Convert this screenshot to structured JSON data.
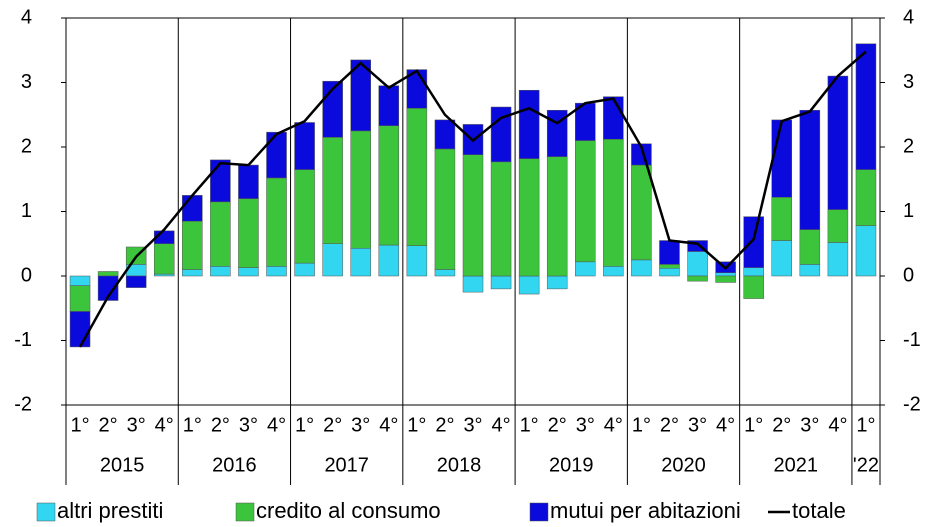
{
  "chart_data": {
    "type": "bar",
    "categories": [
      "1°",
      "2°",
      "3°",
      "4°",
      "1°",
      "2°",
      "3°",
      "4°",
      "1°",
      "2°",
      "3°",
      "4°",
      "1°",
      "2°",
      "3°",
      "4°",
      "1°",
      "2°",
      "3°",
      "4°",
      "1°",
      "2°",
      "3°",
      "4°",
      "1°",
      "2°",
      "3°",
      "4°",
      "1°"
    ],
    "years": [
      "2015",
      "2016",
      "2017",
      "2018",
      "2019",
      "2020",
      "2021",
      "'22"
    ],
    "series": [
      {
        "name": "altri prestiti",
        "color": "#33d6f0",
        "values": [
          -0.15,
          0,
          0.18,
          0.03,
          0.1,
          0.15,
          0.13,
          0.15,
          0.2,
          0.5,
          0.43,
          0.48,
          0.47,
          0.1,
          -0.25,
          -0.2,
          -0.28,
          -0.2,
          0.22,
          0.15,
          0.25,
          0.12,
          0.38,
          0.05,
          0.13,
          0.55,
          0.18,
          0.52,
          0.78
        ]
      },
      {
        "name": "credito al consumo",
        "color": "#3cc43c",
        "values": [
          -0.4,
          0.07,
          0.27,
          0.47,
          0.75,
          1.0,
          1.07,
          1.37,
          1.45,
          1.65,
          1.82,
          1.85,
          2.13,
          1.87,
          1.88,
          1.77,
          1.82,
          1.85,
          1.88,
          1.97,
          1.47,
          0.06,
          -0.08,
          -0.1,
          -0.35,
          0.67,
          0.54,
          0.51,
          0.87
        ]
      },
      {
        "name": "mutui per abitazioni",
        "color": "#0a0adc",
        "values": [
          -0.55,
          -0.38,
          -0.18,
          0.2,
          0.4,
          0.65,
          0.52,
          0.71,
          0.73,
          0.87,
          1.1,
          0.62,
          0.6,
          0.45,
          0.47,
          0.85,
          1.06,
          0.72,
          0.58,
          0.66,
          0.33,
          0.37,
          0.17,
          0.17,
          0.79,
          1.2,
          1.85,
          2.07,
          1.95
        ]
      },
      {
        "name": "totale",
        "type": "line",
        "color": "#000000",
        "values": [
          -1.1,
          -0.32,
          0.3,
          0.72,
          1.25,
          1.75,
          1.72,
          2.2,
          2.4,
          2.9,
          3.3,
          2.92,
          3.18,
          2.5,
          2.1,
          2.45,
          2.6,
          2.37,
          2.68,
          2.75,
          2.0,
          0.55,
          0.5,
          0.12,
          0.57,
          2.4,
          2.55,
          3.1,
          3.48
        ]
      }
    ],
    "ylim": [
      -2,
      4
    ],
    "yticks": [
      -2,
      -1,
      0,
      1,
      2,
      3,
      4
    ],
    "y2lim": [
      -2,
      4
    ],
    "y2ticks": [
      -2,
      -1,
      0,
      1,
      2,
      3,
      4
    ],
    "legend": "bottom"
  }
}
